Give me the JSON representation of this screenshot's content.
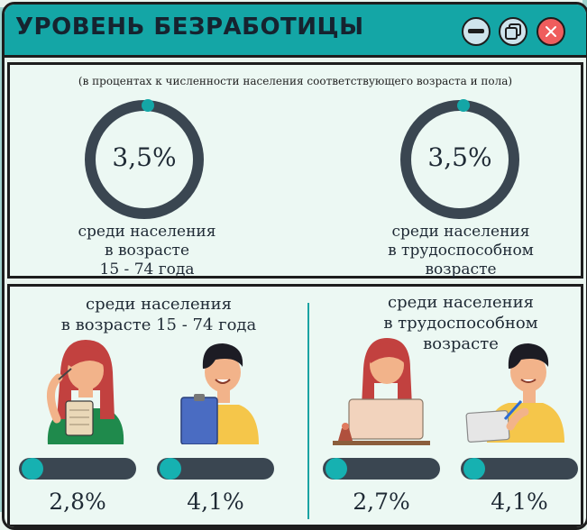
{
  "window": {
    "title": "УРОВЕНЬ БЕЗРАБОТИЦЫ",
    "controls": [
      "minimize-icon",
      "restore-icon",
      "close-icon"
    ]
  },
  "summary": {
    "subtitle": "(в процентах к численности населения соответствующего возраста и пола)",
    "rings": [
      {
        "value": "3,5%",
        "caption": [
          "среди населения",
          "в возрасте",
          "15 - 74 года"
        ]
      },
      {
        "value": "3,5%",
        "caption": [
          "среди населения",
          "в трудоспособном",
          "возрасте"
        ]
      }
    ]
  },
  "breakdown": {
    "groups": [
      {
        "title": [
          "среди населения",
          "в возрасте 15 - 74 года"
        ],
        "items": [
          {
            "figure": "woman-thinking-with-notepad",
            "value": "2,8%"
          },
          {
            "figure": "man-holding-clipboard",
            "value": "4,1%"
          }
        ]
      },
      {
        "title": [
          "среди населения",
          "в трудоспособном",
          "возрасте"
        ],
        "items": [
          {
            "figure": "woman-at-laptop",
            "value": "2,7%"
          },
          {
            "figure": "man-writing-on-tablet",
            "value": "4,1%"
          }
        ]
      }
    ]
  },
  "colors": {
    "accent": "#14a6a6",
    "dark": "#3a4651",
    "background": "#e9f4ee",
    "close": "#ef5d5d"
  }
}
